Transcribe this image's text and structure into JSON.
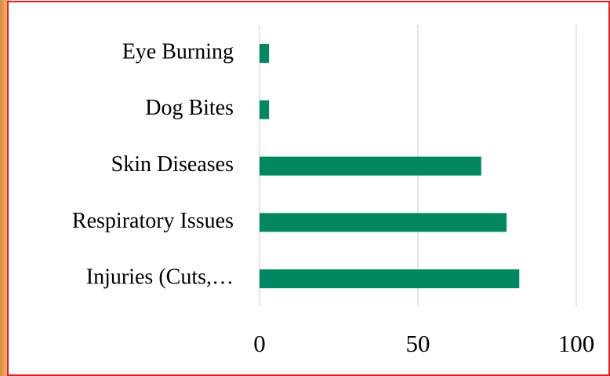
{
  "chart_data": {
    "type": "barh",
    "categories": [
      "Eye Burning",
      "Dog Bites",
      "Skin Diseases",
      "Respiratory Issues",
      "Injuries (Cuts,…"
    ],
    "values": [
      3,
      3,
      70,
      78,
      82
    ],
    "color": "#038760",
    "xlim": [
      0,
      110
    ],
    "xticks": [
      0,
      50,
      100
    ],
    "grid": true
  }
}
